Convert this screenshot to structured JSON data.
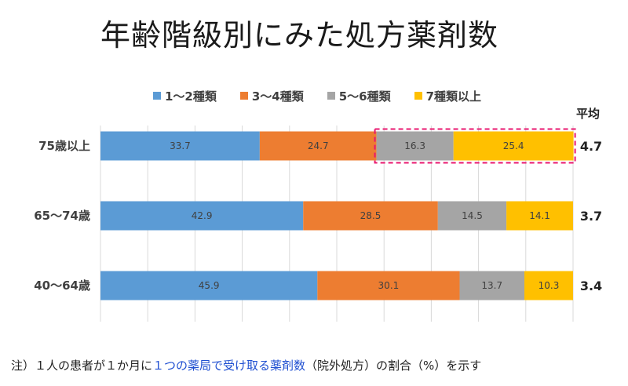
{
  "title": "年齢階級別にみた処方薬剤数",
  "legend_position": "top",
  "avg_header": "平均",
  "colors": {
    "s1": "#5b9bd5",
    "s2": "#ed7d31",
    "s3": "#a5a5a5",
    "s4": "#ffc000",
    "highlight": "#e8176f"
  },
  "footnote": {
    "prefix": "注）１人の患者が１か月に",
    "emphasis": "１つの薬局で受け取る薬剤数",
    "suffix": "（院外処方）の割合（%）を示す"
  },
  "chart_data": {
    "type": "bar",
    "orientation": "horizontal",
    "stacked": true,
    "categories": [
      "75歳以上",
      "65〜74歳",
      "40〜64歳"
    ],
    "series": [
      {
        "name": "1〜2種類",
        "values": [
          33.7,
          42.9,
          45.9
        ]
      },
      {
        "name": "3〜4種類",
        "values": [
          24.7,
          28.5,
          30.1
        ]
      },
      {
        "name": "5〜6種類",
        "values": [
          16.3,
          14.5,
          13.7
        ]
      },
      {
        "name": "7種類以上",
        "values": [
          25.4,
          14.1,
          10.3
        ]
      }
    ],
    "averages": [
      "4.7",
      "3.7",
      "3.4"
    ],
    "xlim": [
      0,
      100
    ],
    "grid": true,
    "highlight": {
      "category_index": 0,
      "series_indices": [
        2,
        3
      ]
    }
  }
}
